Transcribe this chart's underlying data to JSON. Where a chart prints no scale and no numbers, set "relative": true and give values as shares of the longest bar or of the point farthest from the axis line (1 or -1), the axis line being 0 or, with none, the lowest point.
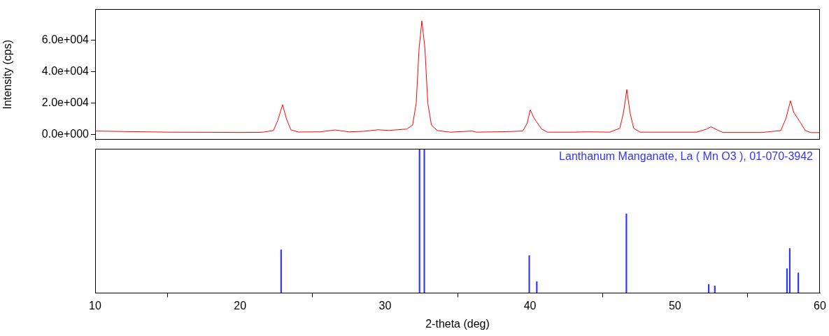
{
  "chart_data": [
    {
      "type": "line",
      "ylabel": "Intensity (cps)",
      "xlim": [
        10,
        60
      ],
      "ylim": [
        -3500,
        80000
      ],
      "yticks": [
        {
          "value": 0,
          "label": "0.0e+000"
        },
        {
          "value": 20000,
          "label": "2.0e+004"
        },
        {
          "value": 40000,
          "label": "4.0e+004"
        },
        {
          "value": 60000,
          "label": "6.0e+004"
        }
      ],
      "tick_labels": "y",
      "legend": false,
      "series": [
        {
          "color": "#ff0000",
          "x": [
            10,
            12,
            15,
            18,
            20,
            21.5,
            22.3,
            22.6,
            22.93,
            23.2,
            23.5,
            24,
            25.5,
            26.55,
            27.5,
            28.5,
            29.5,
            30.3,
            31.5,
            31.9,
            32.15,
            32.35,
            32.54,
            32.75,
            32.95,
            33.2,
            33.6,
            34.5,
            36,
            36.3,
            38.3,
            39.5,
            39.8,
            40.02,
            40.25,
            40.43,
            40.8,
            41.2,
            43,
            44.05,
            45.5,
            46.2,
            46.45,
            46.68,
            46.9,
            47.15,
            47.6,
            51.5,
            52.2,
            52.49,
            52.9,
            53.3,
            56,
            57.3,
            57.65,
            57.97,
            58.2,
            58.62,
            59,
            59.4,
            60
          ],
          "values": [
            2200,
            1900,
            1500,
            1400,
            1300,
            1400,
            2500,
            9000,
            19000,
            10000,
            3000,
            1600,
            1700,
            2900,
            1700,
            2000,
            3000,
            2600,
            3500,
            6000,
            20000,
            55000,
            72500,
            55000,
            20000,
            6000,
            2500,
            1500,
            2200,
            1500,
            1800,
            2200,
            7000,
            15700,
            11000,
            8400,
            3500,
            1500,
            1500,
            1700,
            1500,
            4000,
            14000,
            28700,
            14000,
            4000,
            1500,
            1500,
            3500,
            4900,
            3000,
            1300,
            1300,
            2500,
            10000,
            21500,
            14000,
            8100,
            2500,
            1200,
            1200
          ]
        }
      ]
    },
    {
      "type": "bar",
      "xlabel": "2-theta (deg)",
      "xlim": [
        10,
        60
      ],
      "xticks": [
        10,
        20,
        30,
        40,
        50,
        60
      ],
      "relative": true,
      "tick_labels": "x",
      "legend": false,
      "series": [
        {
          "name": "Lanthanum Manganate, La ( Mn O3 ), 01-070-3942",
          "color": "#3333ff",
          "x": [
            22.83,
            32.38,
            32.71,
            39.95,
            40.47,
            46.65,
            52.33,
            52.75,
            57.73,
            57.92,
            58.51
          ],
          "values": [
            0.3,
            1,
            1,
            0.26,
            0.08,
            0.55,
            0.06,
            0.05,
            0.17,
            0.31,
            0.14
          ]
        }
      ]
    }
  ]
}
